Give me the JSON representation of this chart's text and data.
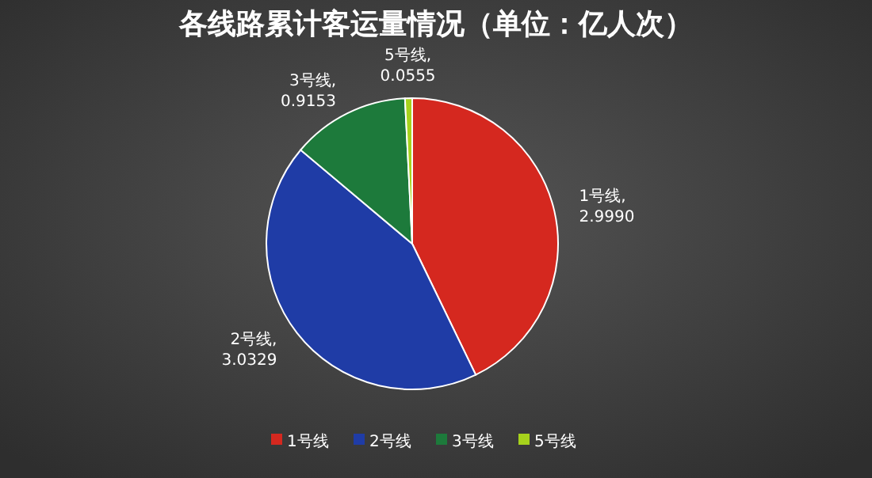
{
  "chart_data": {
    "type": "pie",
    "title": "各线路累计客运量情况（单位：亿人次）",
    "categories": [
      "1号线",
      "2号线",
      "3号线",
      "5号线"
    ],
    "values": [
      2.999,
      3.0329,
      0.9153,
      0.0555
    ],
    "value_labels": [
      "1号线,\n2.9990",
      "2号线,\n3.0329",
      "3号线,\n0.9153",
      "5号线,\n0.0555"
    ],
    "colors": [
      "#d5281f",
      "#1f3ca6",
      "#1d7a3b",
      "#a6d21c"
    ],
    "legend": "bottom"
  }
}
